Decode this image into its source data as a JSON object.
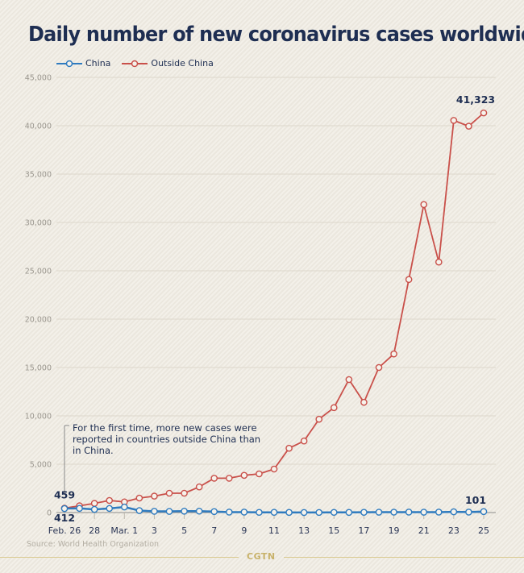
{
  "title": "Daily number of new coronavirus cases worldwide:",
  "legend": [
    {
      "name": "China",
      "color": "#2f7bbf"
    },
    {
      "name": "Outside China",
      "color": "#c9504a"
    }
  ],
  "annotation": "For the first time, more new cases were reported in countries outside China than in China.",
  "source": "Source: World Health Organization",
  "brand": "CGTN",
  "chart_data": {
    "type": "line",
    "title": "Daily number of new coronavirus cases worldwide:",
    "xlabel": "",
    "ylabel": "",
    "ylim": [
      0,
      45000
    ],
    "yticks": [
      0,
      5000,
      10000,
      15000,
      20000,
      25000,
      30000,
      35000,
      40000,
      45000
    ],
    "ytick_labels": [
      "0",
      "5,000",
      "10,000",
      "15,000",
      "20,000",
      "25,000",
      "30,000",
      "35,000",
      "40,000",
      "45,000"
    ],
    "grid": true,
    "legend_position": "top-left",
    "x": [
      "Feb. 26",
      "27",
      "28",
      "29",
      "Mar. 1",
      "2",
      "3",
      "4",
      "5",
      "6",
      "7",
      "8",
      "9",
      "10",
      "11",
      "12",
      "13",
      "14",
      "15",
      "16",
      "17",
      "18",
      "19",
      "20",
      "21",
      "22",
      "23",
      "24",
      "25"
    ],
    "xtick_labels_shown": [
      "Feb. 26",
      "28",
      "Mar. 1",
      "3",
      "5",
      "7",
      "9",
      "11",
      "13",
      "15",
      "17",
      "19",
      "21",
      "23",
      "25"
    ],
    "xtick_indices": [
      0,
      2,
      4,
      6,
      8,
      10,
      12,
      14,
      16,
      18,
      20,
      22,
      24,
      26,
      28
    ],
    "series": [
      {
        "name": "China",
        "color": "#2f7bbf",
        "values": [
          412,
          433,
          327,
          427,
          573,
          206,
          130,
          120,
          143,
          146,
          102,
          46,
          45,
          20,
          24,
          15,
          8,
          11,
          21,
          16,
          27,
          39,
          41,
          46,
          39,
          46,
          78,
          47,
          101
        ]
      },
      {
        "name": "Outside China",
        "color": "#c9504a",
        "values": [
          459,
          700,
          950,
          1250,
          1100,
          1500,
          1700,
          2000,
          2000,
          2650,
          3550,
          3550,
          3850,
          4000,
          4500,
          6650,
          7400,
          9650,
          10850,
          13750,
          11400,
          15000,
          16400,
          24100,
          31850,
          25900,
          40550,
          39950,
          41323
        ]
      }
    ],
    "annotations": [
      {
        "text": "459",
        "series": "Outside China",
        "index": 0
      },
      {
        "text": "412",
        "series": "China",
        "index": 0
      },
      {
        "text": "41,323",
        "series": "Outside China",
        "index": 28
      },
      {
        "text": "101",
        "series": "China",
        "index": 28
      }
    ]
  }
}
